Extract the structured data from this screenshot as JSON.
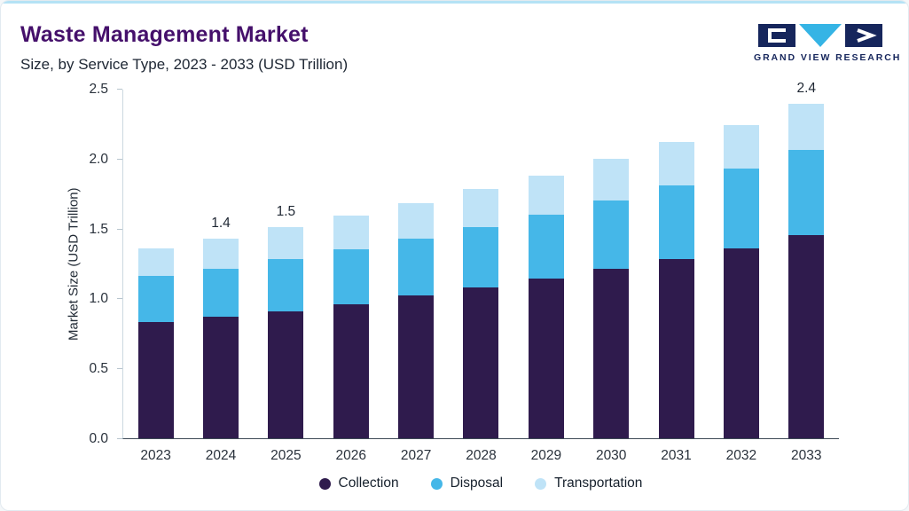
{
  "header": {
    "title": "Waste Management Market",
    "subtitle": "Size, by Service Type, 2023 - 2033 (USD Trillion)",
    "logo_text": "GRAND VIEW RESEARCH"
  },
  "theme": {
    "accent_line": "#b5e2f5",
    "title_color": "#45106b",
    "logo_navy": "#16265c",
    "logo_cyan": "#35b4e5"
  },
  "chart_data": {
    "type": "bar",
    "stacked": true,
    "title": "Waste Management Market Size, by Service Type, 2023 - 2033 (USD Trillion)",
    "categories": [
      "2023",
      "2024",
      "2025",
      "2026",
      "2027",
      "2028",
      "2029",
      "2030",
      "2031",
      "2032",
      "2033"
    ],
    "series": [
      {
        "name": "Collection",
        "color": "#2f1b4d",
        "values": [
          0.83,
          0.87,
          0.91,
          0.96,
          1.02,
          1.08,
          1.14,
          1.21,
          1.28,
          1.36,
          1.45
        ]
      },
      {
        "name": "Disposal",
        "color": "#45b7e8",
        "values": [
          0.33,
          0.34,
          0.37,
          0.39,
          0.41,
          0.43,
          0.46,
          0.49,
          0.53,
          0.57,
          0.61
        ]
      },
      {
        "name": "Transportation",
        "color": "#bfe3f7",
        "values": [
          0.2,
          0.22,
          0.23,
          0.24,
          0.25,
          0.27,
          0.28,
          0.3,
          0.31,
          0.31,
          0.33
        ]
      }
    ],
    "bar_labels": [
      "",
      "1.4",
      "1.5",
      "",
      "",
      "",
      "",
      "",
      "",
      "",
      "2.4"
    ],
    "ylabel": "Market Size (USD Trillion)",
    "ylim": [
      0,
      2.5
    ],
    "yticks": [
      "0.0",
      "0.5",
      "1.0",
      "1.5",
      "2.0",
      "2.5"
    ],
    "grid": false,
    "legend_position": "bottom"
  }
}
